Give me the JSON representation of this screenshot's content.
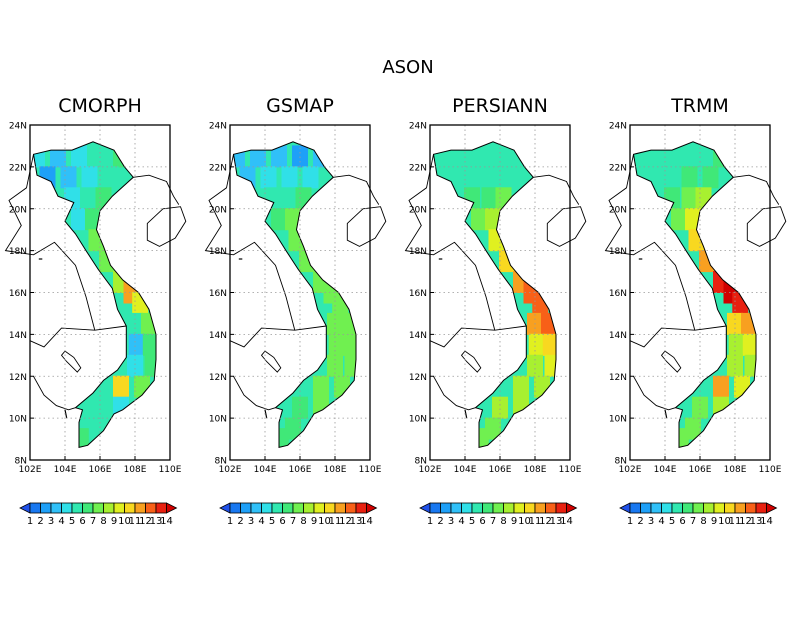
{
  "figure_title": "ASON",
  "panels": [
    {
      "title": "CMORPH",
      "cells": [
        [
          22.5,
          102.4,
          4
        ],
        [
          22.5,
          103.6,
          3
        ],
        [
          22.5,
          104.8,
          4
        ],
        [
          22.5,
          106.0,
          5
        ],
        [
          22.5,
          107.2,
          6
        ],
        [
          21.5,
          103.0,
          2
        ],
        [
          21.5,
          104.2,
          3
        ],
        [
          21.5,
          105.4,
          4
        ],
        [
          21.5,
          106.6,
          5
        ],
        [
          20.5,
          104.4,
          4
        ],
        [
          20.5,
          105.4,
          5
        ],
        [
          20.5,
          106.2,
          6
        ],
        [
          19.5,
          104.8,
          4
        ],
        [
          19.5,
          105.6,
          6
        ],
        [
          18.5,
          105.8,
          7
        ],
        [
          17.5,
          106.4,
          7
        ],
        [
          16.5,
          107.2,
          8
        ],
        [
          16.0,
          107.8,
          11
        ],
        [
          15.5,
          108.3,
          9
        ],
        [
          14.5,
          108.0,
          5
        ],
        [
          14.5,
          108.8,
          7
        ],
        [
          13.5,
          108.1,
          3
        ],
        [
          13.5,
          108.9,
          6
        ],
        [
          12.5,
          108.0,
          4
        ],
        [
          12.5,
          109.0,
          6
        ],
        [
          11.5,
          107.2,
          10
        ],
        [
          11.5,
          108.4,
          7
        ],
        [
          10.5,
          106.0,
          5
        ],
        [
          10.5,
          107.2,
          4
        ],
        [
          9.5,
          105.6,
          5
        ],
        [
          9.0,
          104.9,
          6
        ]
      ]
    },
    {
      "title": "GSMAP",
      "cells": [
        [
          22.5,
          102.4,
          3
        ],
        [
          22.5,
          103.6,
          3
        ],
        [
          22.5,
          104.8,
          3
        ],
        [
          22.5,
          106.0,
          2
        ],
        [
          22.5,
          107.2,
          3
        ],
        [
          21.5,
          103.0,
          3
        ],
        [
          21.5,
          104.2,
          4
        ],
        [
          21.5,
          105.4,
          4
        ],
        [
          21.5,
          106.6,
          4
        ],
        [
          20.5,
          104.4,
          5
        ],
        [
          20.5,
          105.4,
          5
        ],
        [
          20.5,
          106.2,
          6
        ],
        [
          19.5,
          104.8,
          6
        ],
        [
          19.5,
          105.6,
          7
        ],
        [
          18.5,
          105.8,
          7
        ],
        [
          17.5,
          106.4,
          7
        ],
        [
          16.5,
          107.2,
          7
        ],
        [
          16.0,
          107.8,
          7
        ],
        [
          15.5,
          108.3,
          7
        ],
        [
          14.5,
          108.0,
          7
        ],
        [
          14.5,
          108.8,
          7
        ],
        [
          13.5,
          108.1,
          7
        ],
        [
          13.5,
          108.9,
          7
        ],
        [
          12.5,
          108.0,
          7
        ],
        [
          12.5,
          109.0,
          7
        ],
        [
          11.5,
          107.2,
          7
        ],
        [
          11.5,
          108.4,
          7
        ],
        [
          10.5,
          106.0,
          6
        ],
        [
          10.5,
          107.2,
          7
        ],
        [
          9.5,
          105.6,
          6
        ],
        [
          9.0,
          104.9,
          6
        ]
      ]
    },
    {
      "title": "PERSIANN",
      "cells": [
        [
          22.5,
          102.4,
          5
        ],
        [
          22.5,
          103.6,
          5
        ],
        [
          22.5,
          104.8,
          5
        ],
        [
          22.5,
          106.0,
          5
        ],
        [
          22.5,
          107.2,
          5
        ],
        [
          21.5,
          103.0,
          5
        ],
        [
          21.5,
          104.2,
          5
        ],
        [
          21.5,
          105.4,
          5
        ],
        [
          21.5,
          106.6,
          5
        ],
        [
          20.5,
          104.4,
          6
        ],
        [
          20.5,
          105.4,
          6
        ],
        [
          20.5,
          106.2,
          7
        ],
        [
          19.5,
          104.8,
          7
        ],
        [
          19.5,
          105.6,
          8
        ],
        [
          18.5,
          105.8,
          9
        ],
        [
          17.5,
          106.4,
          10
        ],
        [
          16.5,
          107.2,
          11
        ],
        [
          16.0,
          107.8,
          12
        ],
        [
          15.5,
          108.3,
          12
        ],
        [
          14.5,
          108.0,
          11
        ],
        [
          14.5,
          108.8,
          12
        ],
        [
          13.5,
          108.1,
          9
        ],
        [
          13.5,
          108.9,
          10
        ],
        [
          12.5,
          108.0,
          8
        ],
        [
          12.5,
          109.0,
          9
        ],
        [
          11.5,
          107.2,
          8
        ],
        [
          11.5,
          108.4,
          8
        ],
        [
          10.5,
          106.0,
          8
        ],
        [
          10.5,
          107.2,
          8
        ],
        [
          9.5,
          105.6,
          7
        ],
        [
          9.0,
          104.9,
          7
        ]
      ]
    },
    {
      "title": "TRMM",
      "cells": [
        [
          22.5,
          102.4,
          5
        ],
        [
          22.5,
          103.6,
          5
        ],
        [
          22.5,
          104.8,
          5
        ],
        [
          22.5,
          106.0,
          5
        ],
        [
          22.5,
          107.2,
          6
        ],
        [
          21.5,
          103.0,
          5
        ],
        [
          21.5,
          104.2,
          5
        ],
        [
          21.5,
          105.4,
          6
        ],
        [
          21.5,
          106.6,
          6
        ],
        [
          20.5,
          104.4,
          6
        ],
        [
          20.5,
          105.4,
          7
        ],
        [
          20.5,
          106.2,
          8
        ],
        [
          19.5,
          104.8,
          7
        ],
        [
          19.5,
          105.6,
          9
        ],
        [
          18.5,
          105.8,
          10
        ],
        [
          17.5,
          106.4,
          11
        ],
        [
          16.5,
          107.2,
          13
        ],
        [
          16.0,
          107.8,
          14
        ],
        [
          15.5,
          108.3,
          13
        ],
        [
          14.5,
          108.0,
          10
        ],
        [
          14.5,
          108.8,
          11
        ],
        [
          13.5,
          108.1,
          8
        ],
        [
          13.5,
          108.9,
          9
        ],
        [
          12.5,
          108.0,
          8
        ],
        [
          12.5,
          109.0,
          8
        ],
        [
          11.5,
          107.2,
          11
        ],
        [
          11.5,
          108.4,
          9
        ],
        [
          10.5,
          106.0,
          7
        ],
        [
          10.5,
          107.2,
          8
        ],
        [
          9.5,
          105.6,
          7
        ],
        [
          9.0,
          104.9,
          7
        ]
      ]
    }
  ],
  "axes": {
    "lat_labels": [
      "24N",
      "22N",
      "20N",
      "18N",
      "16N",
      "14N",
      "12N",
      "10N",
      "8N"
    ],
    "lon_labels": [
      "102E",
      "104E",
      "106E",
      "108E",
      "110E"
    ]
  },
  "colorbar": {
    "labels": [
      "1",
      "2",
      "3",
      "4",
      "5",
      "6",
      "7",
      "8",
      "9",
      "10",
      "11",
      "12",
      "13",
      "14"
    ],
    "colors": [
      "#2050e8",
      "#1878f0",
      "#1ea0f8",
      "#30c0f8",
      "#30e0e8",
      "#30e8b0",
      "#40e878",
      "#70f050",
      "#a8f030",
      "#e0f020",
      "#f8d820",
      "#f8a020",
      "#f86018",
      "#e82010",
      "#d00000"
    ]
  }
}
